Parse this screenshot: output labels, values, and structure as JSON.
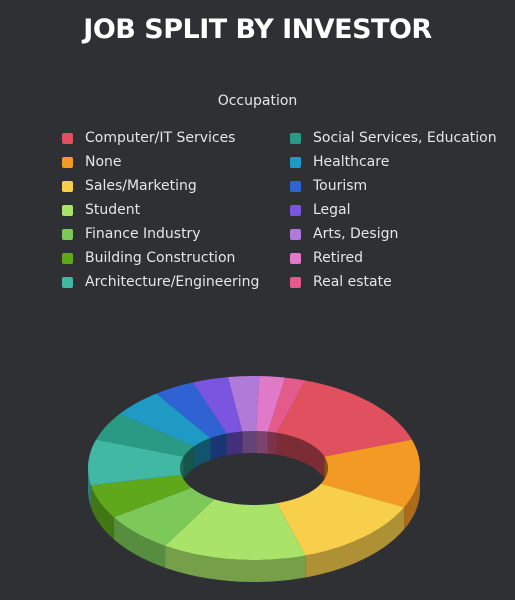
{
  "chart_data": {
    "type": "pie",
    "title": "JOB SPLIT BY INVESTOR",
    "legend_title": "Occupation",
    "legend_placement": "top",
    "style": "3d-donut",
    "series": [
      {
        "name": "Computer/IT Services",
        "value": 15,
        "color": "#e0505f"
      },
      {
        "name": "None",
        "value": 12,
        "color": "#f39a25"
      },
      {
        "name": "Sales/Marketing",
        "value": 13,
        "color": "#f8cf4a"
      },
      {
        "name": "Student",
        "value": 14,
        "color": "#a9e36a"
      },
      {
        "name": "Finance Industry",
        "value": 7,
        "color": "#7cc95a"
      },
      {
        "name": "Building Construction",
        "value": 6,
        "color": "#5fa81c"
      },
      {
        "name": "Architecture/Engineering",
        "value": 8,
        "color": "#40b8a4"
      },
      {
        "name": "Social Services, Education",
        "value": 5,
        "color": "#2a9a84"
      },
      {
        "name": "Healthcare",
        "value": 5,
        "color": "#1f9ac4"
      },
      {
        "name": "Tourism",
        "value": 4,
        "color": "#2f63d4"
      },
      {
        "name": "Legal",
        "value": 3.5,
        "color": "#7a55e0"
      },
      {
        "name": "Arts, Design",
        "value": 3,
        "color": "#b07ad8"
      },
      {
        "name": "Retired",
        "value": 2.5,
        "color": "#e07ac8"
      },
      {
        "name": "Real estate",
        "value": 2,
        "color": "#e45a8a"
      }
    ]
  }
}
